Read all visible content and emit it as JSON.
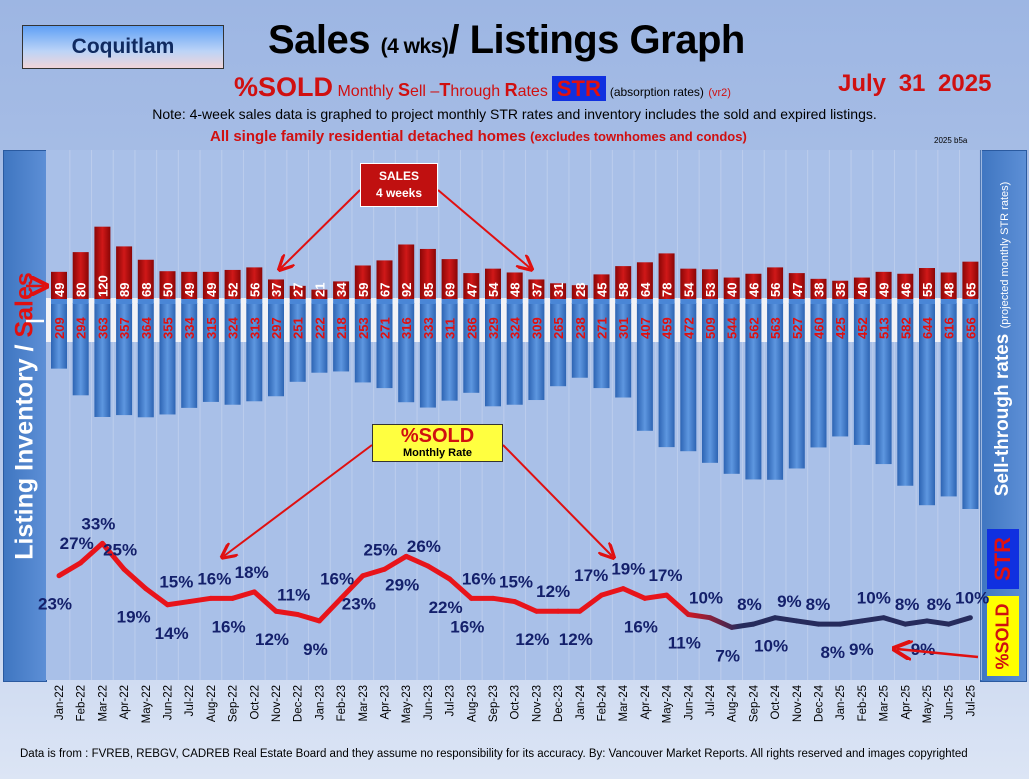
{
  "header": {
    "city": "Coquitlam",
    "title_a": "Sales ",
    "title_b": "(4 wks)",
    "title_c": "/ Listings Graph",
    "sub_sold": "%SOLD",
    "sub_m1": " Monthly ",
    "sub_S": "S",
    "sub_m2": "ell –",
    "sub_T": "T",
    "sub_m3": "hrough ",
    "sub_R": "R",
    "sub_m4": "ates",
    "sub_str": "STR",
    "sub_abs": "(absorption rates)",
    "sub_vr": "(vr2)",
    "date": "July  31  2025",
    "note": "Note: 4-week sales data is graphed to project monthly STR rates and inventory includes the sold and expired listings.",
    "scope": "All single family residential detached homes ",
    "scope_sub": "(excludes townhomes and condos)",
    "version": "2025 b5a"
  },
  "left_axis": {
    "label_a": "Listing Inventory / ",
    "label_b": "Sales"
  },
  "right_axis": {
    "label": "Sell-through rates",
    "sub": "(projected monthly STR rates)",
    "str": "STR",
    "sold": "%SOLD"
  },
  "annotations": {
    "sales_line1": "SALES",
    "sales_line2": "4  weeks",
    "sold_line1": "%SOLD",
    "sold_line2": "Monthly Rate"
  },
  "footer": "Data is from : FVREB, REBGV, CADREB Real Estate Board and they assume no responsibility for its accuracy. By: Vancouver Market Reports. All rights reserved and  images copyrighted",
  "colors": {
    "sales": "#b80d0d",
    "inventory": "#3f7fd0",
    "str_high": "#e8141a",
    "str_low": "#262b5c",
    "labels": "#14206b"
  },
  "chart_data": {
    "type": "bar",
    "categories": [
      "Jan-22",
      "Feb-22",
      "Mar-22",
      "Apr-22",
      "May-22",
      "Jun-22",
      "Jul-22",
      "Aug-22",
      "Sep-22",
      "Oct-22",
      "Nov-22",
      "Dec-22",
      "Jan-23",
      "Feb-23",
      "Mar-23",
      "Apr-23",
      "May-23",
      "Jun-23",
      "Jul-23",
      "Aug-23",
      "Sep-23",
      "Oct-23",
      "Nov-23",
      "Dec-23",
      "Jan-24",
      "Feb-24",
      "Mar-24",
      "Apr-24",
      "May-24",
      "Jun-24",
      "Jul-24",
      "Aug-24",
      "Sep-24",
      "Oct-24",
      "Nov-24",
      "Dec-24",
      "Jan-25",
      "Feb-25",
      "Mar-25",
      "Apr-25",
      "May-25",
      "Jun-25",
      "Jul-25"
    ],
    "series": [
      {
        "name": "Sales",
        "type": "bar",
        "values": [
          49,
          80,
          120,
          89,
          68,
          50,
          49,
          49,
          52,
          56,
          37,
          27,
          21,
          34,
          59,
          67,
          92,
          85,
          69,
          47,
          54,
          48,
          37,
          31,
          28,
          45,
          58,
          64,
          78,
          54,
          53,
          40,
          46,
          56,
          47,
          38,
          35,
          40,
          49,
          46,
          55,
          48,
          65
        ]
      },
      {
        "name": "Listing Inventory",
        "type": "bar",
        "values": [
          209,
          294,
          363,
          357,
          364,
          355,
          334,
          315,
          324,
          313,
          297,
          251,
          222,
          218,
          253,
          271,
          316,
          333,
          311,
          286,
          329,
          324,
          309,
          265,
          238,
          271,
          301,
          407,
          459,
          472,
          509,
          544,
          562,
          563,
          527,
          460,
          425,
          452,
          513,
          582,
          644,
          616,
          656
        ]
      },
      {
        "name": "%SOLD",
        "type": "line",
        "unit": "%",
        "values": [
          23,
          27,
          33,
          25,
          19,
          14,
          15,
          16,
          16,
          18,
          12,
          11,
          9,
          16,
          23,
          25,
          29,
          26,
          22,
          16,
          16,
          15,
          12,
          12,
          12,
          17,
          19,
          16,
          17,
          11,
          10,
          7,
          8,
          10,
          9,
          8,
          8,
          9,
          10,
          8,
          9,
          8,
          10
        ]
      }
    ]
  }
}
